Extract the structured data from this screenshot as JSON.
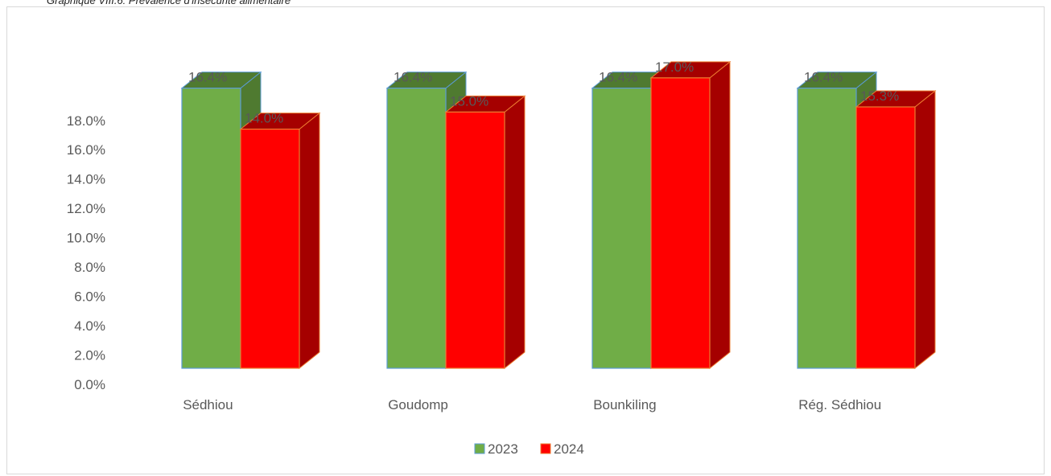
{
  "caption": "Graphique VIII.6: Prévalence d'insécurité alimentaire",
  "colors": {
    "series_2023_face": "#70AD47",
    "series_2023_side": "#4F7A30",
    "series_2023_outline": "#5B9BD5",
    "series_2024_face": "#FF0000",
    "series_2024_side": "#A50000",
    "series_2024_outline": "#ED7D31",
    "label_text": "#595959"
  },
  "chart_data": {
    "type": "bar",
    "style": "3d-clustered-column",
    "categories": [
      "Sédhiou",
      "Goudomp",
      "Bounkiling",
      "Rég. Sédhiou"
    ],
    "series": [
      {
        "name": "2023",
        "values": [
          16.4,
          16.4,
          16.4,
          16.4
        ],
        "labels": [
          "16.4%",
          "16.4%",
          "16.4%",
          "16.4%"
        ]
      },
      {
        "name": "2024",
        "values": [
          14.0,
          15.0,
          17.0,
          15.3
        ],
        "labels": [
          "14.0%",
          "15.0%",
          "17.0%",
          "15.3%"
        ]
      }
    ],
    "y_ticks": [
      "0.0%",
      "2.0%",
      "4.0%",
      "6.0%",
      "8.0%",
      "10.0%",
      "12.0%",
      "14.0%",
      "16.0%",
      "18.0%"
    ],
    "ylim": [
      0,
      18
    ],
    "grid": false,
    "legend": {
      "position": "bottom",
      "entries": [
        "2023",
        "2024"
      ]
    }
  }
}
